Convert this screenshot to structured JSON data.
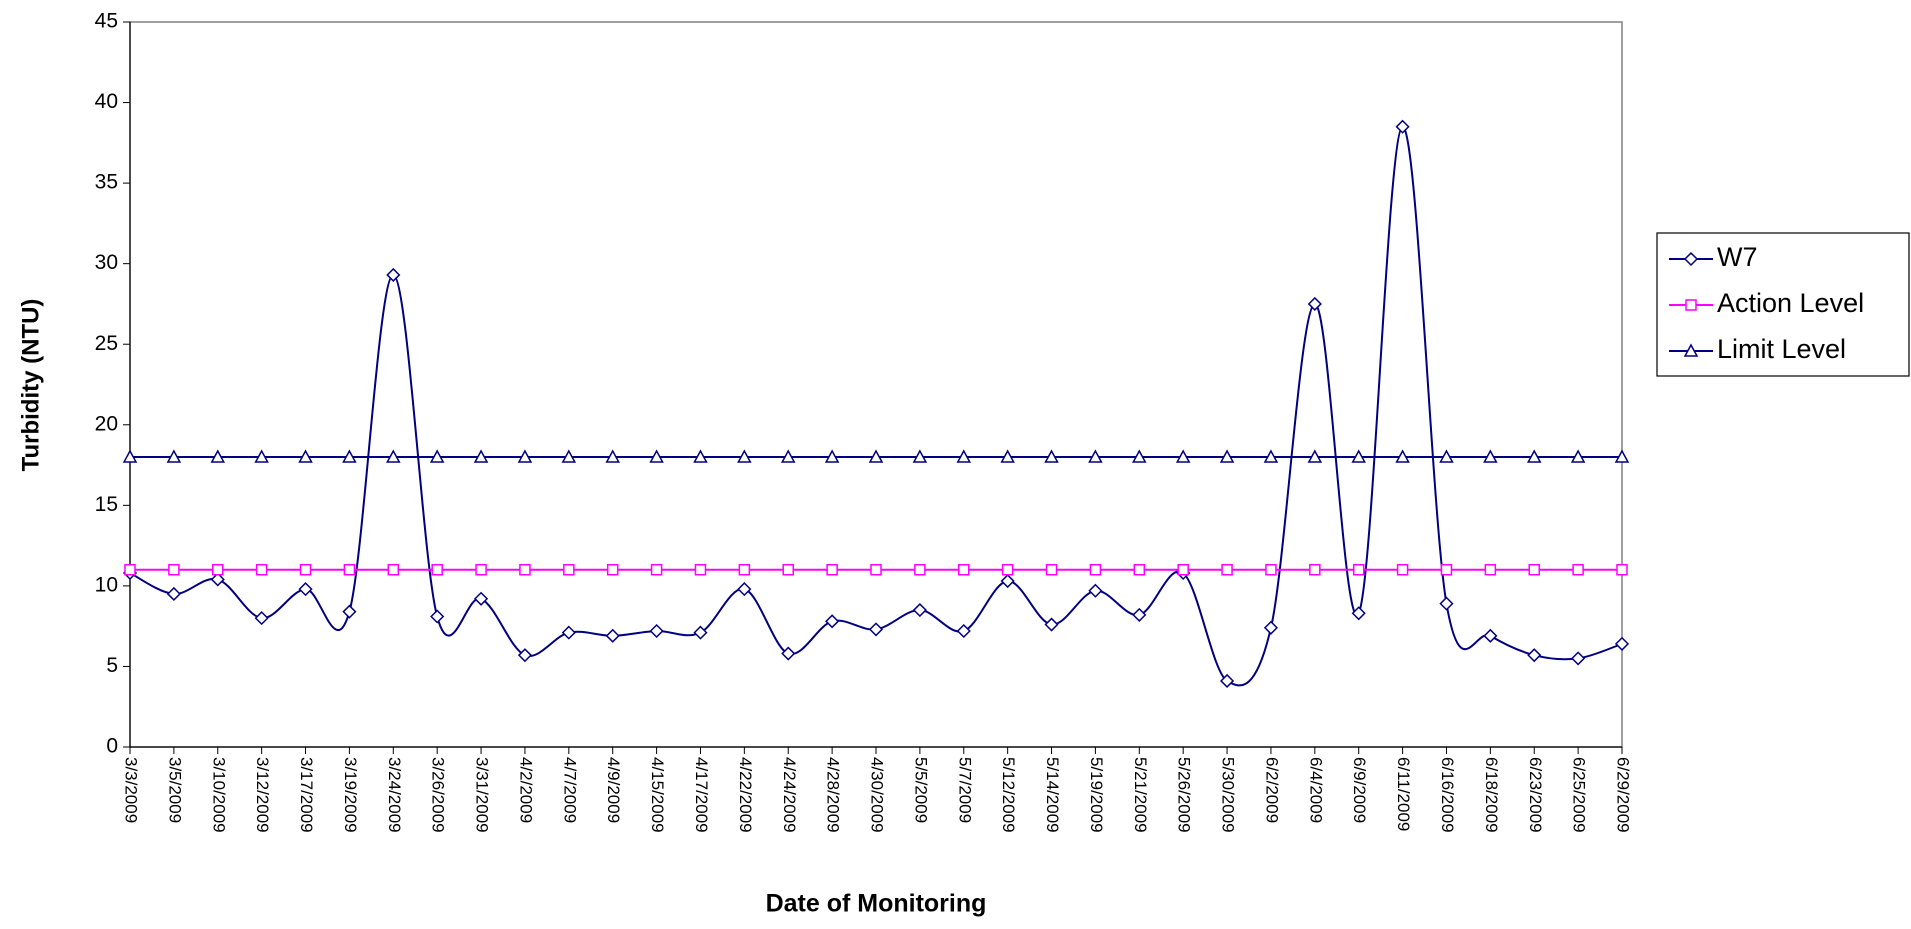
{
  "chart_data": {
    "type": "line",
    "y_label": "Turbidity  (NTU)",
    "x_label": "Date of Monitoring",
    "categories": [
      "3/3/2009",
      "3/5/2009",
      "3/10/2009",
      "3/12/2009",
      "3/17/2009",
      "3/19/2009",
      "3/24/2009",
      "3/26/2009",
      "3/31/2009",
      "4/2/2009",
      "4/7/2009",
      "4/9/2009",
      "4/15/2009",
      "4/17/2009",
      "4/22/2009",
      "4/24/2009",
      "4/28/2009",
      "4/30/2009",
      "5/5/2009",
      "5/7/2009",
      "5/12/2009",
      "5/14/2009",
      "5/19/2009",
      "5/21/2009",
      "5/26/2009",
      "5/30/2009",
      "6/2/2009",
      "6/4/2009",
      "6/9/2009",
      "6/11/2009",
      "6/16/2009",
      "6/18/2009",
      "6/23/2009",
      "6/25/2009",
      "6/29/2009"
    ],
    "series": [
      {
        "name": "W7",
        "color": "#000080",
        "marker": "diamond",
        "smooth": true,
        "values": [
          10.8,
          9.5,
          10.4,
          8.0,
          9.8,
          8.4,
          29.3,
          8.1,
          9.2,
          5.7,
          7.1,
          6.9,
          7.2,
          7.1,
          9.8,
          5.8,
          7.8,
          7.3,
          8.5,
          7.2,
          10.3,
          7.6,
          9.7,
          8.2,
          10.8,
          4.1,
          7.4,
          27.5,
          8.3,
          38.5,
          8.9,
          6.9,
          5.7,
          5.5,
          6.4
        ]
      },
      {
        "name": "Action Level",
        "color": "#ff00ff",
        "marker": "square",
        "smooth": false,
        "values": [
          11,
          11,
          11,
          11,
          11,
          11,
          11,
          11,
          11,
          11,
          11,
          11,
          11,
          11,
          11,
          11,
          11,
          11,
          11,
          11,
          11,
          11,
          11,
          11,
          11,
          11,
          11,
          11,
          11,
          11,
          11,
          11,
          11,
          11,
          11
        ]
      },
      {
        "name": "Limit Level",
        "color": "#000080",
        "marker": "triangle",
        "smooth": false,
        "values": [
          18,
          18,
          18,
          18,
          18,
          18,
          18,
          18,
          18,
          18,
          18,
          18,
          18,
          18,
          18,
          18,
          18,
          18,
          18,
          18,
          18,
          18,
          18,
          18,
          18,
          18,
          18,
          18,
          18,
          18,
          18,
          18,
          18,
          18,
          18
        ]
      }
    ],
    "ylim": [
      0,
      45
    ],
    "yticks": [
      0,
      5,
      10,
      15,
      20,
      25,
      30,
      35,
      40,
      45
    ],
    "grid": false,
    "legend": "right"
  }
}
